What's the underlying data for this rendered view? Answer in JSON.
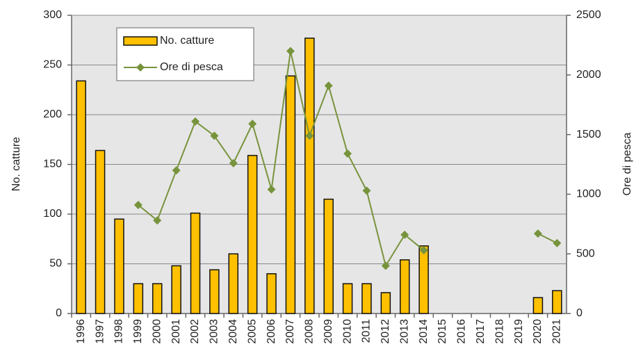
{
  "chart_data": {
    "type": "bar-line",
    "y_label": "No. catture",
    "y2_label": "Ore di pesca",
    "categories": [
      "1996",
      "1997",
      "1998",
      "1999",
      "2000",
      "2001",
      "2002",
      "2003",
      "2004",
      "2005",
      "2006",
      "2007",
      "2008",
      "2009",
      "2010",
      "2011",
      "2012",
      "2013",
      "2014",
      "2015",
      "2016",
      "2017",
      "2018",
      "2019",
      "2020",
      "2021"
    ],
    "series": [
      {
        "name": "No. catture",
        "type": "bar",
        "color": "#ffc000",
        "values": [
          234,
          164,
          95,
          30,
          30,
          48,
          101,
          44,
          60,
          159,
          40,
          239,
          277,
          115,
          30,
          30,
          21,
          54,
          68,
          null,
          null,
          null,
          null,
          null,
          16,
          23
        ]
      },
      {
        "name": "Ore di pesca",
        "type": "line",
        "axis": "y2",
        "color": "#77933c",
        "values": [
          null,
          null,
          null,
          910,
          780,
          1200,
          1610,
          1490,
          1260,
          1590,
          1040,
          2200,
          1490,
          1910,
          1340,
          1030,
          400,
          660,
          530,
          null,
          null,
          null,
          null,
          null,
          670,
          590
        ]
      }
    ],
    "ylim": [
      0,
      300
    ],
    "yticks": [
      0,
      50,
      100,
      150,
      200,
      250,
      300
    ],
    "y2lim": [
      0,
      2500
    ],
    "y2ticks": [
      0,
      500,
      1000,
      1500,
      2000,
      2500
    ],
    "grid": true,
    "legend": "top-left"
  }
}
